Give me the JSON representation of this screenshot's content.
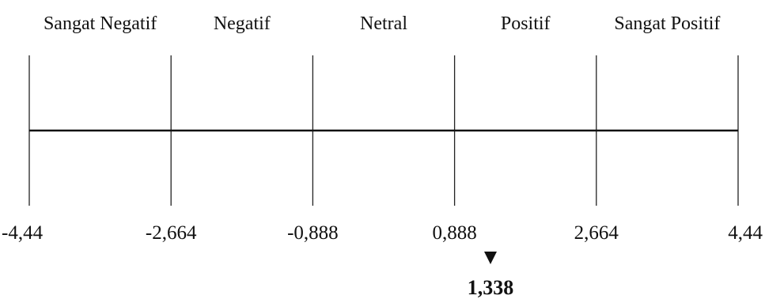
{
  "chart_data": {
    "type": "number-line",
    "range": [
      -4.44,
      4.44
    ],
    "ticks": [
      {
        "value": -4.44,
        "label": "-4,44"
      },
      {
        "value": -2.664,
        "label": "-2,664"
      },
      {
        "value": -0.888,
        "label": "-0,888"
      },
      {
        "value": 0.888,
        "label": "0,888"
      },
      {
        "value": 2.664,
        "label": "2,664"
      },
      {
        "value": 4.44,
        "label": "4,44"
      }
    ],
    "categories": [
      {
        "label": "Sangat Negatif",
        "from": -4.44,
        "to": -2.664
      },
      {
        "label": "Negatif",
        "from": -2.664,
        "to": -0.888
      },
      {
        "label": "Netral",
        "from": -0.888,
        "to": 0.888
      },
      {
        "label": "Positif",
        "from": 0.888,
        "to": 2.664
      },
      {
        "label": "Sangat Positif",
        "from": 2.664,
        "to": 4.44
      }
    ],
    "marker": {
      "value": 1.338,
      "label": "1,338"
    }
  }
}
